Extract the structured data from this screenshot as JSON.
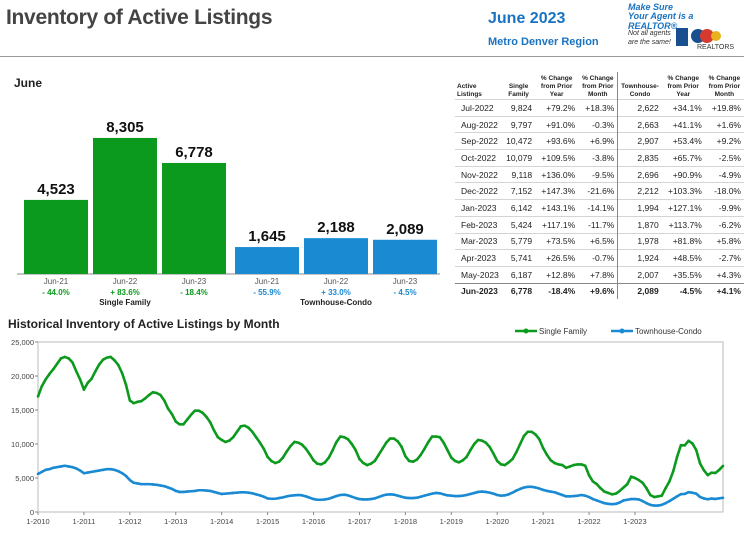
{
  "header": {
    "title": "Inventory of Active Listings",
    "month": "June 2023",
    "region": "Metro Denver Region",
    "tagline1": "Make Sure",
    "tagline2": "Your Agent is a REALTOR®",
    "tagline3": "Not all agents are the same!",
    "realtors": "REALTORS"
  },
  "colors": {
    "single_family": "#0c9a1e",
    "townhouse": "#1a8ad3",
    "negative": "#0c9a1e",
    "title": "#444444",
    "accent": "#1a73c1"
  },
  "chart_data": [
    {
      "type": "bar",
      "title": "June",
      "groups": [
        {
          "label": "Single Family",
          "categories": [
            "Jun-21",
            "Jun-22",
            "Jun-23"
          ],
          "values": [
            4523,
            8305,
            6778
          ],
          "value_labels": [
            "4,523",
            "8,305",
            "6,778"
          ],
          "changes": [
            "- 44.0%",
            "+ 83.6%",
            "- 18.4%"
          ]
        },
        {
          "label": "Townhouse-Condo",
          "categories": [
            "Jun-21",
            "Jun-22",
            "Jun-23"
          ],
          "values": [
            1645,
            2188,
            2089
          ],
          "value_labels": [
            "1,645",
            "2,188",
            "2,089"
          ],
          "changes": [
            "- 55.9%",
            "+ 33.0%",
            "- 4.5%"
          ]
        }
      ],
      "ylim": [
        0,
        9400
      ]
    },
    {
      "type": "table",
      "columns": [
        "Active Listings",
        "Single Family",
        "% Change from Prior Year",
        "% Change from Prior Month",
        "Townhouse-Condo",
        "% Change from Prior Year",
        "% Change from Prior Month"
      ],
      "rows": [
        [
          "Jul-2022",
          "9,824",
          "+79.2%",
          "+18.3%",
          "2,622",
          "+34.1%",
          "+19.8%"
        ],
        [
          "Aug-2022",
          "9,797",
          "+91.0%",
          "-0.3%",
          "2,663",
          "+41.1%",
          "+1.6%"
        ],
        [
          "Sep-2022",
          "10,472",
          "+93.6%",
          "+6.9%",
          "2,907",
          "+53.4%",
          "+9.2%"
        ],
        [
          "Oct-2022",
          "10,079",
          "+109.5%",
          "-3.8%",
          "2,835",
          "+65.7%",
          "-2.5%"
        ],
        [
          "Nov-2022",
          "9,118",
          "+136.0%",
          "-9.5%",
          "2,696",
          "+90.9%",
          "-4.9%"
        ],
        [
          "Dec-2022",
          "7,152",
          "+147.3%",
          "-21.6%",
          "2,212",
          "+103.3%",
          "-18.0%"
        ],
        [
          "Jan-2023",
          "6,142",
          "+143.1%",
          "-14.1%",
          "1,994",
          "+127.1%",
          "-9.9%"
        ],
        [
          "Feb-2023",
          "5,424",
          "+117.1%",
          "-11.7%",
          "1,870",
          "+113.7%",
          "-6.2%"
        ],
        [
          "Mar-2023",
          "5,779",
          "+73.5%",
          "+6.5%",
          "1,978",
          "+81.8%",
          "+5.8%"
        ],
        [
          "Apr-2023",
          "5,741",
          "+26.5%",
          "-0.7%",
          "1,924",
          "+48.5%",
          "-2.7%"
        ],
        [
          "May-2023",
          "6,187",
          "+12.8%",
          "+7.8%",
          "2,007",
          "+35.5%",
          "+4.3%"
        ],
        [
          "Jun-2023",
          "6,778",
          "-18.4%",
          "+9.6%",
          "2,089",
          "-4.5%",
          "+4.1%"
        ]
      ]
    },
    {
      "type": "line",
      "title": "Historical Inventory of Active Listings by Month",
      "ylim": [
        0,
        25000
      ],
      "yticks": [
        0,
        5000,
        10000,
        15000,
        20000,
        25000
      ],
      "ytick_labels": [
        "0",
        "5,000",
        "10,000",
        "15,000",
        "20,000",
        "25,000"
      ],
      "xticks": [
        "1-2010",
        "1-2011",
        "1-2012",
        "1-2013",
        "1-2014",
        "1-2015",
        "1-2016",
        "1-2017",
        "1-2018",
        "1-2019",
        "1-2020",
        "1-2021",
        "1-2022",
        "1-2023"
      ],
      "x_start": "2010-01",
      "legend_position": "top-right",
      "grid": false,
      "series": [
        {
          "name": "Single Family",
          "values": [
            17000,
            18500,
            19500,
            20300,
            21000,
            21800,
            22600,
            22800,
            22600,
            22000,
            20700,
            19500,
            18000,
            19000,
            19600,
            20700,
            21700,
            22400,
            22700,
            22800,
            22300,
            21600,
            20400,
            18700,
            16400,
            16000,
            16200,
            16300,
            16700,
            17200,
            17600,
            17500,
            17200,
            16400,
            15200,
            14400,
            13300,
            12900,
            12900,
            13600,
            14300,
            14900,
            14900,
            14600,
            14000,
            13200,
            12000,
            11000,
            10600,
            10300,
            10500,
            11000,
            11800,
            12600,
            12700,
            12400,
            11800,
            11000,
            10200,
            9300,
            8100,
            7500,
            7200,
            7400,
            8000,
            8900,
            9700,
            10300,
            10200,
            9900,
            9300,
            8500,
            7600,
            7100,
            7000,
            7300,
            8000,
            9100,
            10300,
            11100,
            11000,
            10700,
            10000,
            9100,
            7800,
            7200,
            6900,
            7100,
            7500,
            8400,
            9300,
            10200,
            10800,
            10800,
            10400,
            9600,
            8200,
            7500,
            7400,
            7700,
            8400,
            9300,
            10300,
            11100,
            11100,
            11000,
            10200,
            9100,
            8000,
            7500,
            7300,
            7600,
            8100,
            9100,
            10000,
            10600,
            10500,
            10200,
            9600,
            8600,
            7500,
            7000,
            6900,
            7300,
            7800,
            8800,
            10000,
            11200,
            11800,
            11800,
            11400,
            10700,
            9400,
            8400,
            7600,
            7200,
            7000,
            6900,
            6500,
            6700,
            6900,
            7000,
            7000,
            6800,
            5400,
            4500,
            4100,
            3500,
            3000,
            2800,
            2600,
            2700,
            3100,
            3600,
            4100,
            5200,
            5000,
            4700,
            4300,
            3500,
            2500,
            2200,
            2300,
            2400,
            3500,
            4500,
            6000,
            8100,
            9824,
            9797,
            10472,
            10079,
            9118,
            7152,
            6142,
            5424,
            5779,
            5741,
            6187,
            6778
          ]
        },
        {
          "name": "Townhouse-Condo",
          "values": [
            5600,
            5900,
            6200,
            6300,
            6500,
            6600,
            6700,
            6800,
            6700,
            6600,
            6400,
            6100,
            5700,
            5800,
            5900,
            6000,
            6100,
            6200,
            6300,
            6300,
            6200,
            6000,
            5700,
            5300,
            4700,
            4300,
            4200,
            4100,
            4100,
            4100,
            4050,
            4000,
            3900,
            3800,
            3600,
            3400,
            3100,
            2950,
            2950,
            3000,
            3050,
            3100,
            3200,
            3200,
            3150,
            3100,
            2950,
            2800,
            2650,
            2700,
            2750,
            2800,
            2850,
            2900,
            2900,
            2850,
            2750,
            2600,
            2450,
            2250,
            2000,
            1950,
            1950,
            2050,
            2150,
            2300,
            2400,
            2450,
            2500,
            2450,
            2300,
            2100,
            1900,
            1800,
            1800,
            1850,
            1950,
            2150,
            2350,
            2500,
            2550,
            2450,
            2250,
            2050,
            1900,
            1850,
            1850,
            1900,
            2000,
            2200,
            2400,
            2550,
            2600,
            2550,
            2400,
            2250,
            2100,
            2050,
            2050,
            2100,
            2250,
            2400,
            2550,
            2700,
            2800,
            2750,
            2600,
            2450,
            2400,
            2350,
            2350,
            2400,
            2500,
            2650,
            2800,
            2950,
            3000,
            2950,
            2850,
            2700,
            2500,
            2400,
            2450,
            2600,
            2850,
            3150,
            3400,
            3600,
            3700,
            3700,
            3600,
            3450,
            3250,
            3100,
            3000,
            2900,
            2700,
            2500,
            2300,
            2300,
            2350,
            2400,
            2500,
            2400,
            2200,
            1900,
            1700,
            1500,
            1300,
            1200,
            1150,
            1200,
            1400,
            1700,
            1800,
            1900,
            1900,
            1850,
            1600,
            1300,
            1050,
            950,
            950,
            1050,
            1300,
            1600,
            1950,
            2300,
            2622,
            2663,
            2907,
            2835,
            2696,
            2212,
            1994,
            1870,
            1978,
            1924,
            2007,
            2089
          ]
        }
      ]
    }
  ]
}
